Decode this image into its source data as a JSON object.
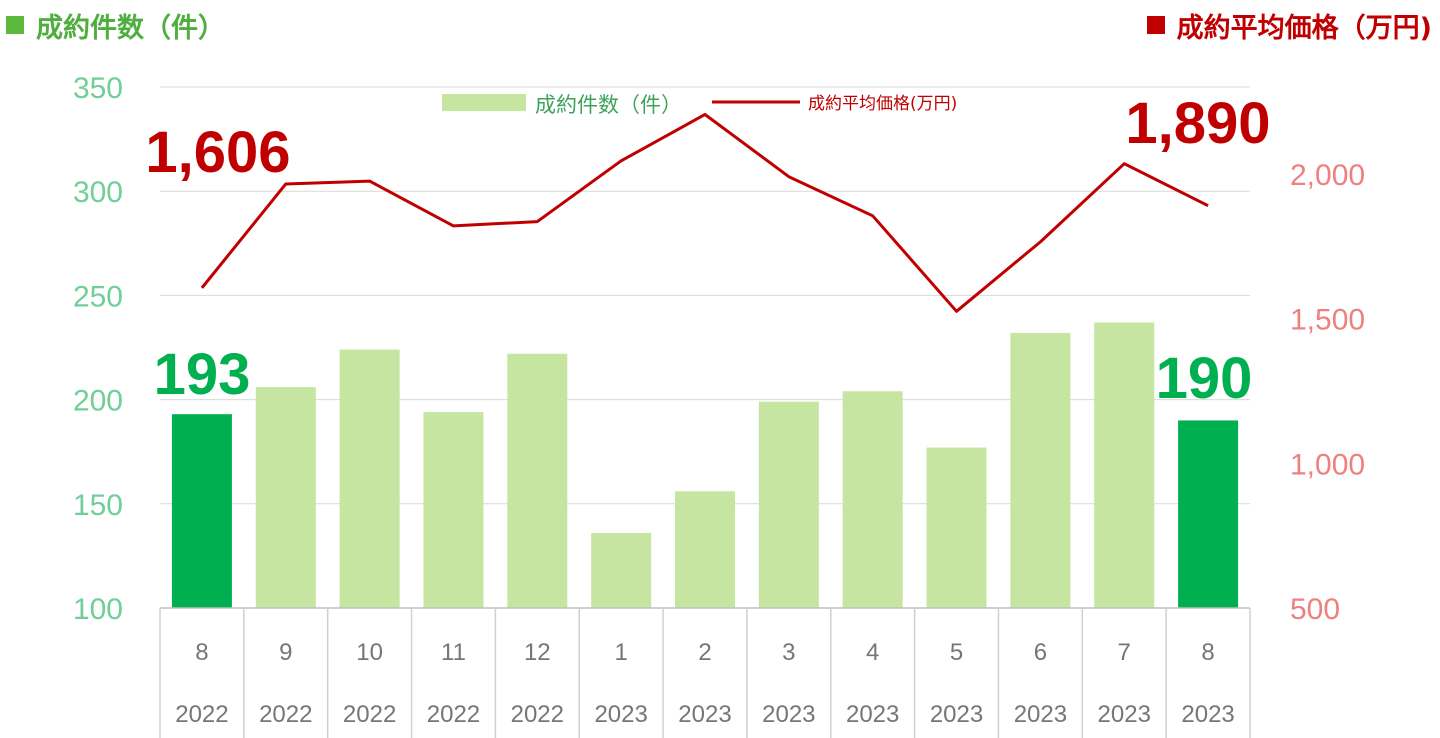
{
  "header": {
    "left_title": "成約件数（件）",
    "right_title": "成約平均価格（万円)"
  },
  "colors": {
    "bar_highlight": "#00b050",
    "bar_normal": "#c5e5a0",
    "line": "#c00000",
    "left_axis": "#6fcf97",
    "right_axis": "#ee8080",
    "highlight_green_text": "#00b050",
    "highlight_red_text": "#c00000"
  },
  "chart_data": {
    "type": "bar+line",
    "categories": [
      "8",
      "9",
      "10",
      "11",
      "12",
      "1",
      "2",
      "3",
      "4",
      "5",
      "6",
      "7",
      "8"
    ],
    "years": [
      "2022",
      "2022",
      "2022",
      "2022",
      "2022",
      "2023",
      "2023",
      "2023",
      "2023",
      "2023",
      "2023",
      "2023",
      "2023"
    ],
    "series": [
      {
        "name": "成約件数（件）",
        "type": "bar",
        "axis": "left",
        "values": [
          193,
          206,
          224,
          194,
          222,
          136,
          156,
          199,
          204,
          177,
          232,
          237,
          190
        ],
        "highlight_indices": [
          0,
          12
        ]
      },
      {
        "name": "成約平均価格(万円)",
        "type": "line",
        "axis": "right",
        "values": [
          1606,
          1965,
          1975,
          1820,
          1835,
          2045,
          2205,
          1990,
          1855,
          1525,
          1765,
          2035,
          1890
        ]
      }
    ],
    "left_axis": {
      "ylim": [
        100,
        350
      ],
      "ticks": [
        100,
        150,
        200,
        250,
        300,
        350
      ]
    },
    "right_axis": {
      "ylim": [
        500,
        2300
      ],
      "ticks": [
        500,
        1000,
        1500,
        2000
      ],
      "tick_labels": [
        "500",
        "1,000",
        "1,500",
        "2,000"
      ]
    },
    "gridlines": true,
    "legend": {
      "placement": "top-center",
      "entries": [
        "成約件数（件）",
        "成約平均価格(万円)"
      ]
    },
    "annotations": {
      "bar_start": "193",
      "bar_end": "190",
      "line_start": "1,606",
      "line_end": "1,890"
    }
  }
}
